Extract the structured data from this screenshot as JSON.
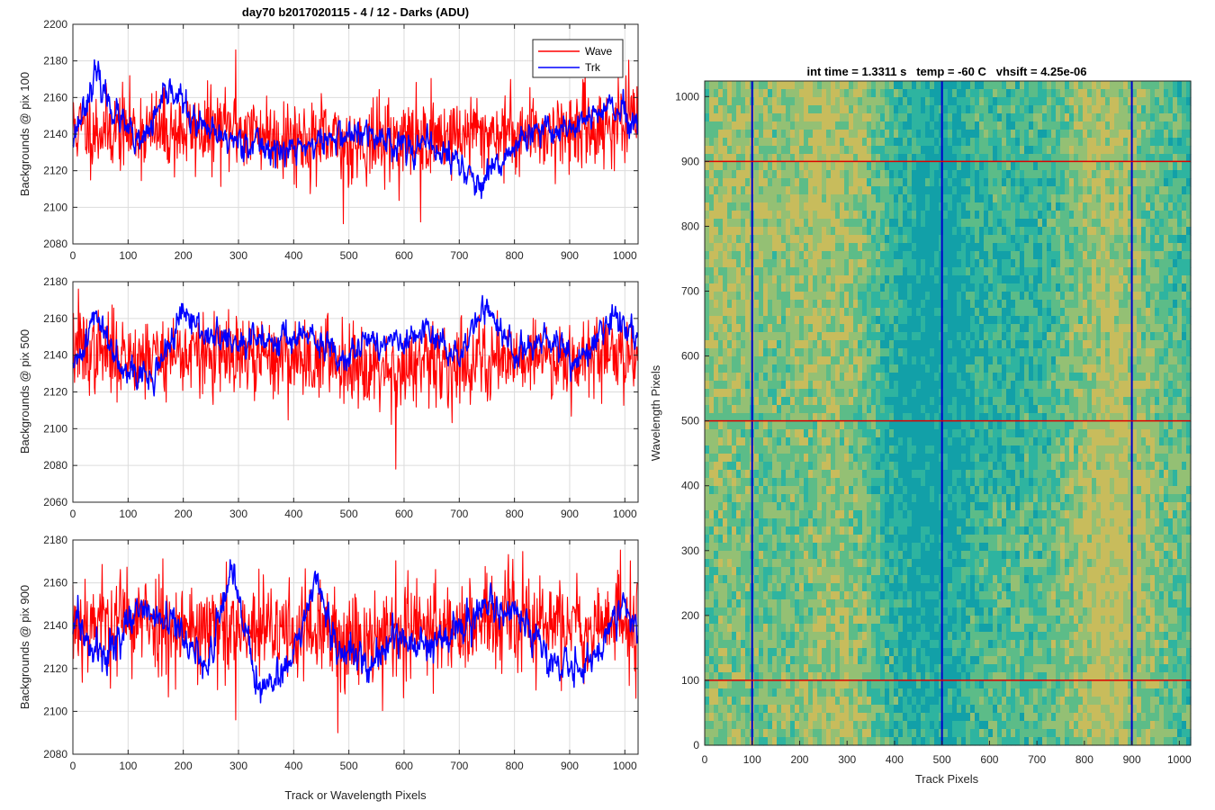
{
  "figure": {
    "title": "day70 b2017020115 - 4 / 12 - Darks (ADU)",
    "colors": {
      "wave": "#ff0000",
      "trk": "#0000ff",
      "grid": "#dcdcdc",
      "axis": "#262626"
    }
  },
  "chart_data": [
    {
      "type": "line",
      "ylabel": "Backgrounds @ pix 100",
      "xlabel": "",
      "xlim": [
        0,
        1024
      ],
      "ylim": [
        2080,
        2200
      ],
      "grid": true,
      "x_ticks": [
        0,
        100,
        200,
        300,
        400,
        500,
        600,
        700,
        800,
        900,
        1000
      ],
      "y_ticks": [
        2080,
        2100,
        2120,
        2140,
        2160,
        2180,
        2200
      ],
      "legend_position": "top-right",
      "series": [
        {
          "name": "Wave",
          "color": "#ff0000",
          "mean": 2142,
          "noise": 11,
          "seed": 11,
          "envelope_x": [
            0,
            100,
            200,
            300,
            400,
            500,
            600,
            700,
            800,
            900,
            1000,
            1024
          ],
          "envelope_y": [
            2143,
            2142,
            2141,
            2143,
            2138,
            2135,
            2137,
            2140,
            2141,
            2142,
            2146,
            2147
          ],
          "peaks": [
            [
              295,
              2186
            ],
            [
              490,
              2091
            ],
            [
              630,
              2092
            ]
          ]
        },
        {
          "name": "Trk",
          "color": "#0000ff",
          "mean": 2140,
          "noise": 3.5,
          "seed": 23,
          "envelope_x": [
            0,
            40,
            80,
            120,
            180,
            220,
            260,
            320,
            380,
            440,
            500,
            560,
            600,
            660,
            700,
            740,
            800,
            860,
            920,
            980,
            1024
          ],
          "envelope_y": [
            2138,
            2172,
            2150,
            2132,
            2166,
            2146,
            2138,
            2136,
            2130,
            2135,
            2140,
            2138,
            2134,
            2132,
            2124,
            2110,
            2134,
            2142,
            2146,
            2155,
            2140
          ]
        }
      ]
    },
    {
      "type": "line",
      "ylabel": "Backgrounds @ pix 500",
      "xlabel": "",
      "xlim": [
        0,
        1024
      ],
      "ylim": [
        2060,
        2180
      ],
      "grid": true,
      "x_ticks": [
        0,
        100,
        200,
        300,
        400,
        500,
        600,
        700,
        800,
        900,
        1000
      ],
      "y_ticks": [
        2060,
        2080,
        2100,
        2120,
        2140,
        2160,
        2180
      ],
      "series": [
        {
          "name": "Wave",
          "color": "#ff0000",
          "mean": 2140,
          "noise": 11,
          "seed": 37,
          "envelope_x": [
            0,
            100,
            200,
            300,
            400,
            500,
            600,
            700,
            800,
            900,
            1000,
            1024
          ],
          "envelope_y": [
            2142,
            2140,
            2141,
            2138,
            2139,
            2137,
            2132,
            2136,
            2140,
            2139,
            2141,
            2143
          ],
          "peaks": [
            [
              585,
              2078
            ],
            [
              10,
              2176
            ]
          ]
        },
        {
          "name": "Trk",
          "color": "#0000ff",
          "mean": 2145,
          "noise": 3.5,
          "seed": 41,
          "envelope_x": [
            0,
            40,
            80,
            140,
            200,
            240,
            300,
            360,
            420,
            480,
            540,
            600,
            640,
            700,
            750,
            800,
            860,
            920,
            980,
            1024
          ],
          "envelope_y": [
            2130,
            2162,
            2140,
            2125,
            2162,
            2152,
            2145,
            2150,
            2150,
            2140,
            2148,
            2146,
            2152,
            2140,
            2168,
            2140,
            2148,
            2135,
            2162,
            2150
          ]
        }
      ]
    },
    {
      "type": "line",
      "ylabel": "Backgrounds @ pix 900",
      "xlabel": "Track or Wavelength Pixels",
      "xlim": [
        0,
        1024
      ],
      "ylim": [
        2080,
        2180
      ],
      "grid": true,
      "x_ticks": [
        0,
        100,
        200,
        300,
        400,
        500,
        600,
        700,
        800,
        900,
        1000
      ],
      "y_ticks": [
        2080,
        2100,
        2120,
        2140,
        2160,
        2180
      ],
      "series": [
        {
          "name": "Wave",
          "color": "#ff0000",
          "mean": 2140,
          "noise": 12,
          "seed": 53,
          "envelope_x": [
            0,
            100,
            200,
            300,
            400,
            500,
            600,
            700,
            800,
            900,
            1000,
            1024
          ],
          "envelope_y": [
            2142,
            2143,
            2140,
            2136,
            2138,
            2134,
            2138,
            2140,
            2142,
            2140,
            2142,
            2140
          ],
          "peaks": [
            [
              480,
              2090
            ],
            [
              295,
              2096
            ]
          ]
        },
        {
          "name": "Trk",
          "color": "#0000ff",
          "mean": 2135,
          "noise": 3.5,
          "seed": 59,
          "envelope_x": [
            0,
            60,
            120,
            180,
            240,
            290,
            340,
            400,
            440,
            480,
            530,
            580,
            640,
            700,
            760,
            820,
            880,
            940,
            1000,
            1024
          ],
          "envelope_y": [
            2140,
            2125,
            2148,
            2140,
            2120,
            2165,
            2110,
            2125,
            2160,
            2128,
            2120,
            2135,
            2128,
            2140,
            2152,
            2140,
            2120,
            2125,
            2150,
            2138
          ]
        }
      ]
    },
    {
      "type": "heatmap",
      "title": "int time = 1.3311 s   temp = -60 C   vhsift = 4.25e-06",
      "xlabel": "Track Pixels",
      "ylabel": "Wavelength Pixels",
      "xlim": [
        0,
        1024
      ],
      "ylim": [
        0,
        1024
      ],
      "x_ticks": [
        0,
        100,
        200,
        300,
        400,
        500,
        600,
        700,
        800,
        900,
        1000
      ],
      "y_ticks": [
        0,
        100,
        200,
        300,
        400,
        500,
        600,
        700,
        800,
        900,
        1000
      ],
      "colormap": [
        "#12a0a8",
        "#2eb4a0",
        "#5cbc88",
        "#94c074",
        "#c8bc5c"
      ],
      "marker_lines": {
        "vertical_x": [
          100,
          500,
          900
        ],
        "vertical_color": "#0000cc",
        "horizontal_y": [
          100,
          500,
          900
        ],
        "horizontal_color": "#dd0000"
      }
    }
  ]
}
